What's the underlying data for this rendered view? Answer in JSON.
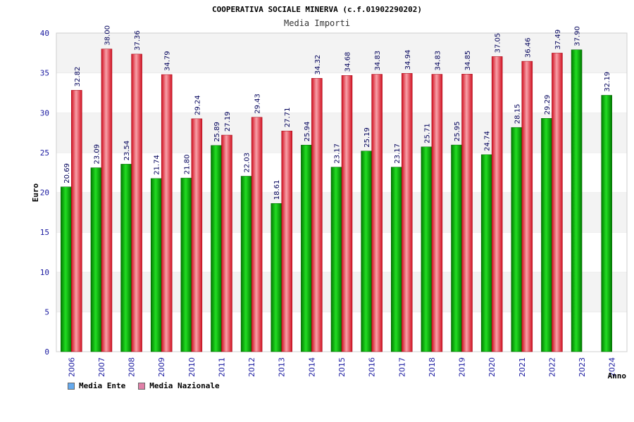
{
  "chart_data": {
    "type": "bar",
    "title": "COOPERATIVA SOCIALE MINERVA (c.f.01902290202)",
    "subtitle": "Media Importi",
    "ylabel": "Euro",
    "xlabel": "Anno",
    "ylim": [
      0,
      40
    ],
    "yticks": [
      0,
      5,
      10,
      15,
      20,
      25,
      30,
      35,
      40
    ],
    "grid": "horizontal bands",
    "legend_position": "bottom-left",
    "categories": [
      "2006",
      "2007",
      "2008",
      "2009",
      "2010",
      "2011",
      "2012",
      "2013",
      "2014",
      "2015",
      "2016",
      "2017",
      "2018",
      "2019",
      "2020",
      "2021",
      "2022",
      "2023",
      "2024"
    ],
    "series": [
      {
        "name": "Media Ente",
        "color": "#00b000",
        "legend_color": "#66aaee",
        "values": [
          20.69,
          23.09,
          23.54,
          21.74,
          21.8,
          25.89,
          22.03,
          18.61,
          25.94,
          23.17,
          25.19,
          23.17,
          25.71,
          25.95,
          24.74,
          28.15,
          29.29,
          37.9,
          32.19
        ],
        "labels": [
          "20.69",
          "23.09",
          "23.54",
          "21.74",
          "21.80",
          "25.89",
          "22.03",
          "18.61",
          "25.94",
          "23.17",
          "25.19",
          "23.17",
          "25.71",
          "25.95",
          "24.74",
          "28.15",
          "29.29",
          "37.90",
          "32.19"
        ]
      },
      {
        "name": "Media Nazionale",
        "color": "#e8202a",
        "legend_color": "#e080a8",
        "values": [
          32.82,
          38.0,
          37.36,
          34.79,
          29.24,
          27.19,
          29.43,
          27.71,
          34.32,
          34.68,
          34.83,
          34.94,
          34.83,
          34.85,
          37.05,
          36.46,
          37.49,
          null,
          null
        ],
        "labels": [
          "32.82",
          "38.00",
          "37.36",
          "34.79",
          "29.24",
          "27.19",
          "29.43",
          "27.71",
          "34.32",
          "34.68",
          "34.83",
          "34.94",
          "34.83",
          "34.85",
          "37.05",
          "36.46",
          "37.49",
          null,
          null
        ]
      }
    ]
  }
}
